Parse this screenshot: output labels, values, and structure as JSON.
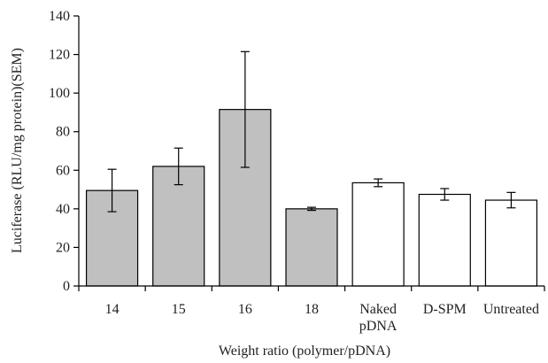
{
  "chart_data": {
    "type": "bar",
    "title": "",
    "xlabel": "Weight ratio (polymer/pDNA)",
    "ylabel": "Luciferase (RLU/mg protein)(SEM)",
    "ylim": [
      0,
      140
    ],
    "yticks": [
      0,
      20,
      40,
      60,
      80,
      100,
      120,
      140
    ],
    "categories": [
      [
        "14"
      ],
      [
        "15"
      ],
      [
        "16"
      ],
      [
        "18"
      ],
      [
        "Naked",
        "pDNA"
      ],
      [
        "D-SPM"
      ],
      [
        "Untreated"
      ]
    ],
    "values": [
      49.5,
      62,
      91.5,
      40,
      53.5,
      47.5,
      44.5
    ],
    "errors": [
      11,
      9.5,
      30,
      0.8,
      2,
      3,
      4
    ],
    "bar_fill": [
      "#c0c0c0",
      "#c0c0c0",
      "#c0c0c0",
      "#c0c0c0",
      "#ffffff",
      "#ffffff",
      "#ffffff"
    ],
    "grid": false,
    "legend": "none"
  }
}
